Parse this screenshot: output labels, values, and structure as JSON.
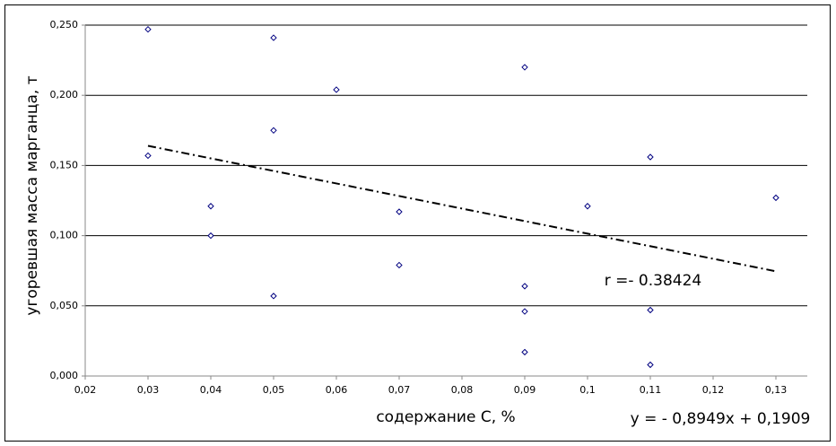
{
  "chart_data": {
    "type": "scatter",
    "x_label": "содержание С, %",
    "y_label": "угоревшая масса марганца, т",
    "series": [
      {
        "color": "#000080",
        "x": [
          0.03,
          0.03,
          0.04,
          0.04,
          0.05,
          0.05,
          0.05,
          0.06,
          0.07,
          0.07,
          0.09,
          0.09,
          0.09,
          0.09,
          0.1,
          0.11,
          0.11,
          0.11,
          0.13
        ],
        "values": [
          0.247,
          0.157,
          0.121,
          0.1,
          0.241,
          0.175,
          0.057,
          0.204,
          0.117,
          0.079,
          0.22,
          0.064,
          0.046,
          0.017,
          0.121,
          0.156,
          0.047,
          0.008,
          0.127
        ]
      }
    ],
    "trendline": {
      "x": [
        0.03,
        0.13
      ],
      "y": [
        0.164,
        0.0746
      ],
      "color": "#000000"
    },
    "annotations": [
      "r =- 0.38424",
      "y = - 0,8949x + 0,1909"
    ],
    "xlim": [
      0.02,
      0.135
    ],
    "ylim": [
      0,
      0.25
    ],
    "xticks": [
      {
        "value": 0.02,
        "label": "0,02"
      },
      {
        "value": 0.03,
        "label": "0,03"
      },
      {
        "value": 0.04,
        "label": "0,04"
      },
      {
        "value": 0.05,
        "label": "0,05"
      },
      {
        "value": 0.06,
        "label": "0,06"
      },
      {
        "value": 0.07,
        "label": "0,07"
      },
      {
        "value": 0.08,
        "label": "0,08"
      },
      {
        "value": 0.09,
        "label": "0,09"
      },
      {
        "value": 0.1,
        "label": "0,1"
      },
      {
        "value": 0.11,
        "label": "0,11"
      },
      {
        "value": 0.12,
        "label": "0,12"
      },
      {
        "value": 0.13,
        "label": "0,13"
      }
    ],
    "yticks": [
      {
        "value": 0,
        "label": "0,000"
      },
      {
        "value": 0.05,
        "label": "0,050"
      },
      {
        "value": 0.1,
        "label": "0,100"
      },
      {
        "value": 0.15,
        "label": "0,150"
      },
      {
        "value": 0.2,
        "label": "0,200"
      },
      {
        "value": 0.25,
        "label": "0,250"
      }
    ],
    "grid": true
  }
}
